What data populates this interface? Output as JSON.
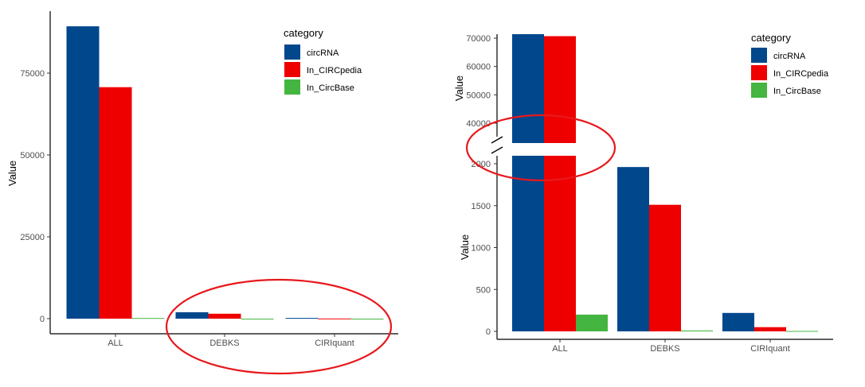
{
  "colors": {
    "circRNA": "#00478C",
    "In_CIRCpedia": "#EE0000",
    "In_CircBase": "#44B540",
    "annotation": "#E8181C",
    "axis": "#000000"
  },
  "chart_data": [
    {
      "type": "bar",
      "categories": [
        "ALL",
        "DEBKS",
        "CIRIquant"
      ],
      "series": [
        {
          "name": "circRNA",
          "values": [
            89300,
            1960,
            220
          ]
        },
        {
          "name": "In_CIRCpedia",
          "values": [
            70700,
            1510,
            50
          ]
        },
        {
          "name": "In_CircBase",
          "values": [
            200,
            10,
            5
          ]
        }
      ],
      "ylabel": "Value",
      "xlabel": "",
      "yticks": [
        "0",
        "25000",
        "50000",
        "75000"
      ],
      "ylim": [
        0,
        94000
      ],
      "legend_title": "category",
      "legend_position": "top-right",
      "grid": false,
      "annotation": "ellipse around DEBKS and CIRIquant bars"
    },
    {
      "type": "bar",
      "categories": [
        "ALL",
        "DEBKS",
        "CIRIquant"
      ],
      "series": [
        {
          "name": "circRNA",
          "values": [
            89300,
            1960,
            220
          ]
        },
        {
          "name": "In_CIRCpedia",
          "values": [
            70700,
            1510,
            50
          ]
        },
        {
          "name": "In_CircBase",
          "values": [
            200,
            10,
            5
          ]
        }
      ],
      "ylabel": "Value",
      "upper_ylabel": "Value",
      "xlabel": "",
      "lower_yticks": [
        "0",
        "500",
        "1000",
        "1500",
        "2000"
      ],
      "upper_yticks": [
        "40000",
        "50000",
        "60000",
        "70000"
      ],
      "lower_ylim": [
        0,
        2100
      ],
      "upper_ylim": [
        33000,
        71500
      ],
      "legend_title": "category",
      "legend_position": "top-right",
      "grid": false,
      "broken_axis": true,
      "annotation": "ellipse around axis break"
    }
  ]
}
